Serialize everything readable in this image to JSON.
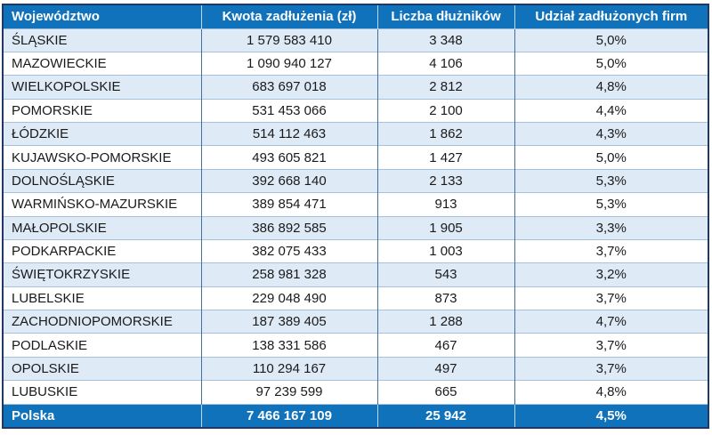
{
  "table": {
    "columns": [
      {
        "label": "Województwo"
      },
      {
        "label": "Kwota zadłużenia (zł)"
      },
      {
        "label": "Liczba dłużników"
      },
      {
        "label": "Udział zadłużonych firm"
      }
    ],
    "rows": [
      [
        "ŚLĄSKIE",
        "1 579 583 410",
        "3 348",
        "5,0%"
      ],
      [
        "MAZOWIECKIE",
        "1 090 940 127",
        "4 106",
        "5,0%"
      ],
      [
        "WIELKOPOLSKIE",
        "683 697 018",
        "2 812",
        "4,8%"
      ],
      [
        "POMORSKIE",
        "531 453 066",
        "2 100",
        "4,4%"
      ],
      [
        "ŁÓDZKIE",
        "514 112 463",
        "1 862",
        "4,3%"
      ],
      [
        "KUJAWSKO-POMORSKIE",
        "493 605 821",
        "1 427",
        "5,0%"
      ],
      [
        "DOLNOŚLĄSKIE",
        "392 668 140",
        "2 133",
        "5,3%"
      ],
      [
        "WARMIŃSKO-MAZURSKIE",
        "389 854 471",
        "913",
        "5,3%"
      ],
      [
        "MAŁOPOLSKIE",
        "386 892 585",
        "1 905",
        "3,3%"
      ],
      [
        "PODKARPACKIE",
        "382 075 433",
        "1 003",
        "3,7%"
      ],
      [
        "ŚWIĘTOKRZYSKIE",
        "258 981 328",
        "543",
        "3,2%"
      ],
      [
        "LUBELSKIE",
        "229 048 490",
        "873",
        "3,7%"
      ],
      [
        "ZACHODNIOPOMORSKIE",
        "187 389 405",
        "1 288",
        "4,7%"
      ],
      [
        "PODLASKIE",
        "138 331 586",
        "467",
        "3,7%"
      ],
      [
        "OPOLSKIE",
        "110 294 167",
        "497",
        "3,7%"
      ],
      [
        "LUBUSKIE",
        "97 239 599",
        "665",
        "4,8%"
      ]
    ],
    "total_row": [
      "Polska",
      "7 466 167 109",
      "25 942",
      "4,5%"
    ]
  },
  "colors": {
    "header_bg": "#1172BC",
    "stripe_bg": "#DEEAF6",
    "row_border": "#A4C2DC",
    "col_border": "#41719C",
    "outer_border": "#1F3864",
    "header_divider": "#BDD7EE"
  },
  "chart_data": {
    "type": "table",
    "columns": [
      "Województwo",
      "Kwota zadłużenia (zł)",
      "Liczba dłużników",
      "Udział zadłużonych firm"
    ],
    "rows": [
      [
        "ŚLĄSKIE",
        "1 579 583 410",
        "3 348",
        "5,0%"
      ],
      [
        "MAZOWIECKIE",
        "1 090 940 127",
        "4 106",
        "5,0%"
      ],
      [
        "WIELKOPOLSKIE",
        "683 697 018",
        "2 812",
        "4,8%"
      ],
      [
        "POMORSKIE",
        "531 453 066",
        "2 100",
        "4,4%"
      ],
      [
        "ŁÓDZKIE",
        "514 112 463",
        "1 862",
        "4,3%"
      ],
      [
        "KUJAWSKO-POMORSKIE",
        "493 605 821",
        "1 427",
        "5,0%"
      ],
      [
        "DOLNOŚLĄSKIE",
        "392 668 140",
        "2 133",
        "5,3%"
      ],
      [
        "WARMIŃSKO-MAZURSKIE",
        "389 854 471",
        "913",
        "5,3%"
      ],
      [
        "MAŁOPOLSKIE",
        "386 892 585",
        "1 905",
        "3,3%"
      ],
      [
        "PODKARPACKIE",
        "382 075 433",
        "1 003",
        "3,7%"
      ],
      [
        "ŚWIĘTOKRZYSKIE",
        "258 981 328",
        "543",
        "3,2%"
      ],
      [
        "LUBELSKIE",
        "229 048 490",
        "873",
        "3,7%"
      ],
      [
        "ZACHODNIOPOMORSKIE",
        "187 389 405",
        "1 288",
        "4,7%"
      ],
      [
        "PODLASKIE",
        "138 331 586",
        "467",
        "3,7%"
      ],
      [
        "OPOLSKIE",
        "110 294 167",
        "497",
        "3,7%"
      ],
      [
        "LUBUSKIE",
        "97 239 599",
        "665",
        "4,8%"
      ]
    ],
    "total_row": [
      "Polska",
      "7 466 167 109",
      "25 942",
      "4,5%"
    ]
  }
}
